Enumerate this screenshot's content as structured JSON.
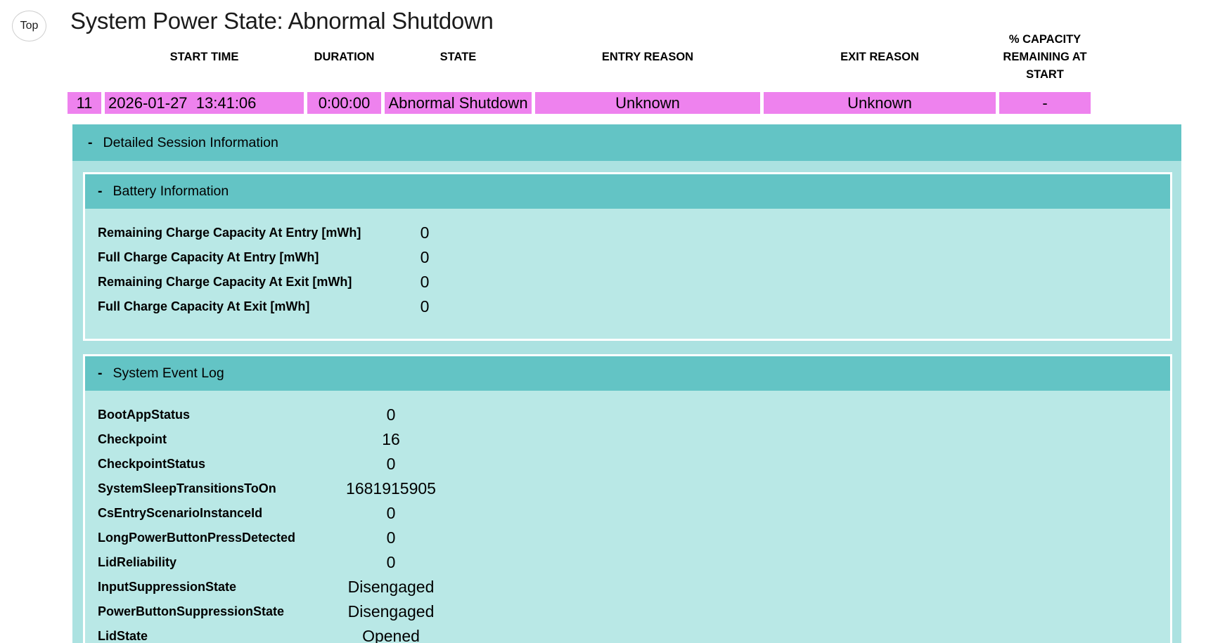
{
  "top_button_label": "Top",
  "title": "System Power State: Abnormal Shutdown",
  "colors": {
    "state_row": "#EE82EE",
    "section_header_teal": "#63C4C5",
    "section_body_teal": "#ACE2E1",
    "panel_body_teal": "#B9E8E6"
  },
  "power_table": {
    "headers": {
      "start_time": "START TIME",
      "duration": "DURATION",
      "state": "STATE",
      "entry_reason": "ENTRY REASON",
      "exit_reason": "EXIT REASON",
      "capacity": "% CAPACITY REMAINING AT START"
    },
    "row": {
      "index": "11",
      "start_time": "2026-01-27  13:41:06",
      "duration": "0:00:00",
      "state": "Abnormal Shutdown",
      "entry_reason": "Unknown",
      "exit_reason": "Unknown",
      "capacity": "-"
    }
  },
  "sections": {
    "detailed": {
      "collapse_glyph": "-",
      "title": "Detailed Session Information"
    },
    "battery": {
      "collapse_glyph": "-",
      "title": "Battery Information",
      "rows": [
        {
          "label": "Remaining Charge Capacity At Entry [mWh]",
          "value": "0"
        },
        {
          "label": "Full Charge Capacity At Entry [mWh]",
          "value": "0"
        },
        {
          "label": "Remaining Charge Capacity At Exit [mWh]",
          "value": "0"
        },
        {
          "label": "Full Charge Capacity At Exit [mWh]",
          "value": "0"
        }
      ]
    },
    "event_log": {
      "collapse_glyph": "-",
      "title": "System Event Log",
      "rows": [
        {
          "label": "BootAppStatus",
          "value": "0"
        },
        {
          "label": "Checkpoint",
          "value": "16"
        },
        {
          "label": "CheckpointStatus",
          "value": "0"
        },
        {
          "label": "SystemSleepTransitionsToOn",
          "value": "1681915905"
        },
        {
          "label": "CsEntryScenarioInstanceId",
          "value": "0"
        },
        {
          "label": "LongPowerButtonPressDetected",
          "value": "0"
        },
        {
          "label": "LidReliability",
          "value": "0"
        },
        {
          "label": "InputSuppressionState",
          "value": "Disengaged"
        },
        {
          "label": "PowerButtonSuppressionState",
          "value": "Disengaged"
        },
        {
          "label": "LidState",
          "value": "Opened"
        }
      ]
    }
  }
}
